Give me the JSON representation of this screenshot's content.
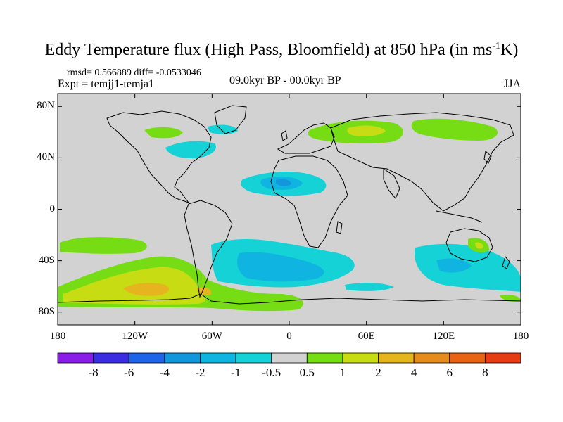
{
  "title": {
    "main": "Eddy Temperature flux (High Pass, Bloomfield) at 850 hPa (in ms",
    "sup": "-1",
    "unit_end": "K)"
  },
  "stats": "rmsd= 0.566889 diff= -0.0533046",
  "expt": "Expt = temjj1-temja1",
  "period": "09.0kyr BP - 00.0kyr BP",
  "season": "JJA",
  "map": {
    "lat_ticks": [
      "80N",
      "40N",
      "0",
      "40S",
      "80S"
    ],
    "lon_ticks": [
      "180",
      "120W",
      "60W",
      "0",
      "60E",
      "120E",
      "180"
    ],
    "background_color": "#d2d2d2",
    "coast_color": "#000000"
  },
  "colorbar": {
    "labels": [
      "-8",
      "-6",
      "-4",
      "-2",
      "-1",
      "-0.5",
      "0.5",
      "1",
      "2",
      "4",
      "6",
      "8"
    ],
    "colors": [
      "#8a1ee6",
      "#3a2ee0",
      "#1e64e6",
      "#1496dc",
      "#10b4e0",
      "#14d2d6",
      "#d2d2d2",
      "#76dc14",
      "#c8dc14",
      "#e6b41e",
      "#e68c1e",
      "#e66414",
      "#e63c14"
    ]
  }
}
